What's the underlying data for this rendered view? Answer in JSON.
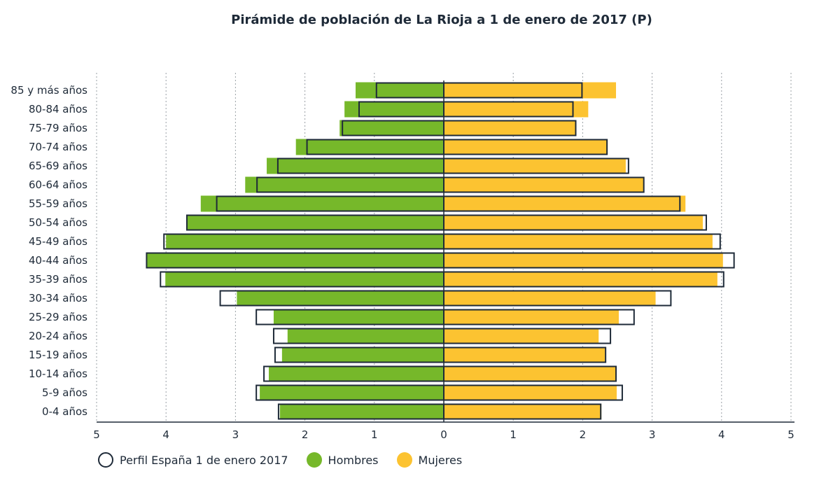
{
  "chart_data": {
    "type": "bar",
    "orientation": "horizontal-pyramid",
    "title": "Pirámide de población de La Rioja a 1 de enero de 2017 (P)",
    "categories": [
      "85 y más años",
      "80-84 años",
      "75-79 años",
      "70-74 años",
      "65-69 años",
      "60-64 años",
      "55-59 años",
      "50-54 años",
      "45-49 años",
      "40-44 años",
      "35-39 años",
      "30-34 años",
      "25-29 años",
      "20-24 años",
      "15-19 años",
      "10-14 años",
      "5-9 años",
      "0-4 años"
    ],
    "series": [
      {
        "name": "Hombres",
        "color": "#76b82a",
        "values": [
          1.27,
          1.43,
          1.5,
          2.13,
          2.55,
          2.86,
          3.5,
          3.7,
          4.0,
          4.28,
          4.01,
          2.98,
          2.45,
          2.25,
          2.33,
          2.52,
          2.65,
          2.36
        ]
      },
      {
        "name": "Mujeres",
        "color": "#fcc331",
        "values": [
          2.48,
          2.08,
          1.9,
          2.36,
          2.62,
          2.88,
          3.48,
          3.73,
          3.87,
          4.02,
          3.94,
          3.05,
          2.52,
          2.23,
          2.32,
          2.49,
          2.49,
          2.27
        ]
      },
      {
        "name": "Perfil España 1 de enero 2017",
        "style": "outline",
        "color": "#1e2a38",
        "values_left": [
          0.97,
          1.22,
          1.46,
          1.97,
          2.39,
          2.69,
          3.27,
          3.7,
          4.03,
          4.28,
          4.08,
          3.22,
          2.7,
          2.45,
          2.43,
          2.59,
          2.7,
          2.38
        ],
        "values_right": [
          1.99,
          1.86,
          1.9,
          2.35,
          2.66,
          2.88,
          3.4,
          3.78,
          3.98,
          4.18,
          4.03,
          3.27,
          2.74,
          2.4,
          2.33,
          2.48,
          2.57,
          2.26
        ]
      }
    ],
    "xlim": [
      -5,
      5
    ],
    "xticks": [
      -5,
      -4,
      -3,
      -2,
      -1,
      0,
      1,
      2,
      3,
      4,
      5
    ],
    "xtick_labels": [
      "5",
      "4",
      "3",
      "2",
      "1",
      "0",
      "1",
      "2",
      "3",
      "4",
      "5"
    ],
    "grid": "vertical dotted",
    "legend_position": "bottom-left"
  },
  "legend": [
    {
      "label": "Perfil España 1 de enero 2017",
      "style": "outline"
    },
    {
      "label": "Hombres",
      "color": "#76b82a"
    },
    {
      "label": "Mujeres",
      "color": "#fcc331"
    }
  ]
}
